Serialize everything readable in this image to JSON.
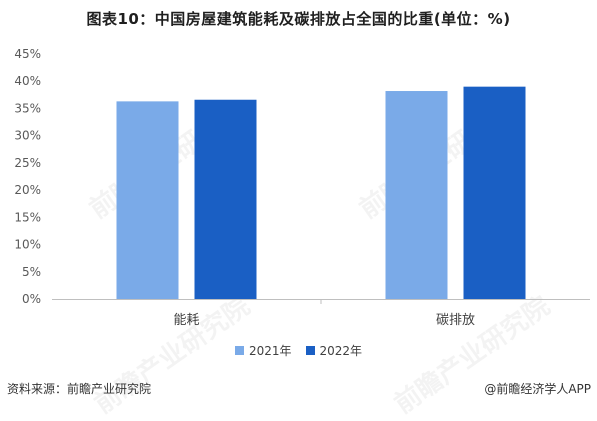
{
  "title": "图表10：中国房屋建筑能耗及碳排放占全国的比重(单位：%)",
  "source": "资料来源：前瞻产业研究院",
  "brand": "@前瞻经济学人APP",
  "watermark": "前瞻产业研究院",
  "colors": {
    "series_2021": "#7aaae8",
    "series_2022": "#1a5fc4"
  },
  "chart_data": {
    "type": "bar",
    "title": "图表10：中国房屋建筑能耗及碳排放占全国的比重(单位：%)",
    "categories": [
      "能耗",
      "碳排放"
    ],
    "series": [
      {
        "name": "2021年",
        "values": [
          36.3,
          38.2
        ]
      },
      {
        "name": "2022年",
        "values": [
          36.6,
          39.0
        ]
      }
    ],
    "ylim": [
      0,
      45
    ],
    "yticks": [
      "0%",
      "5%",
      "10%",
      "15%",
      "20%",
      "25%",
      "30%",
      "35%",
      "40%",
      "45%"
    ],
    "grid": false,
    "legend": "bottom"
  }
}
